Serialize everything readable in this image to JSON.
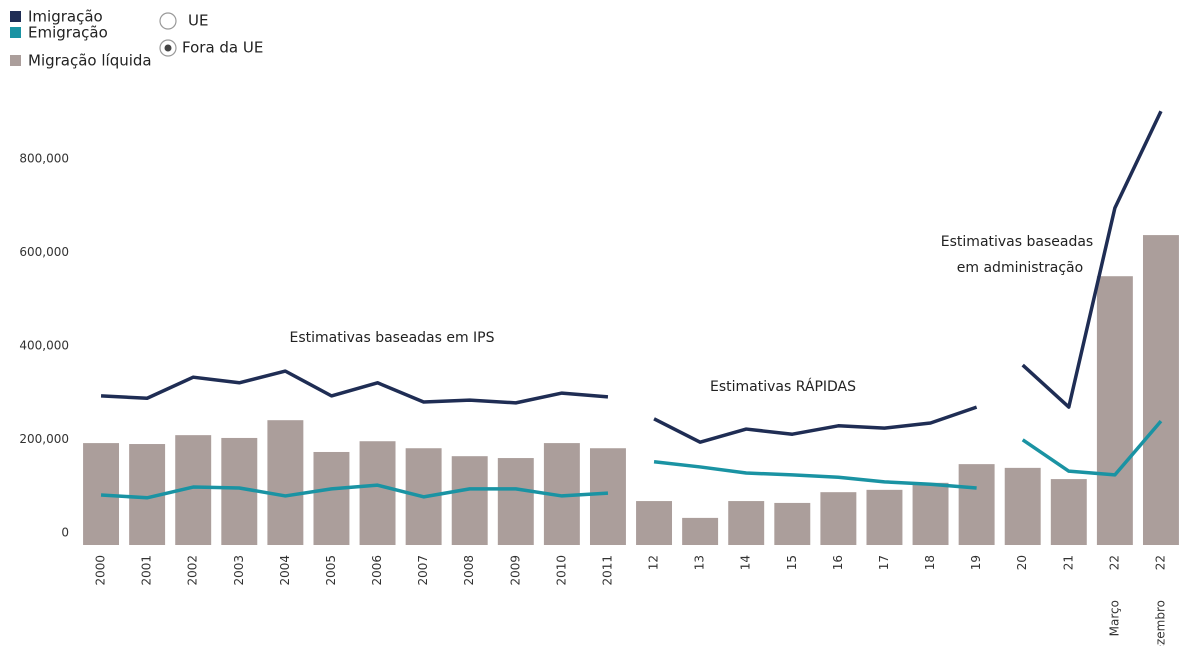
{
  "chart_data": {
    "type": "combo",
    "legend_options": [
      "UE",
      "Fora da UE"
    ],
    "selected_option": 1,
    "annotations": [
      "Estimativas baseadas em IPS",
      "Estimativas RÁPIDAS",
      "Estimativas baseadas",
      "em administração"
    ],
    "categories": [
      "2000",
      "2001",
      "2002",
      "2003",
      "2004",
      "2005",
      "2006",
      "2007",
      "2008",
      "2009",
      "2010",
      "2011",
      "12",
      "13",
      "14",
      "15",
      "16",
      "17",
      "18",
      "19",
      "20",
      "21",
      "22",
      "22"
    ],
    "category_sublabels": [
      null,
      null,
      null,
      null,
      null,
      null,
      null,
      null,
      null,
      null,
      null,
      null,
      null,
      null,
      null,
      null,
      null,
      null,
      null,
      null,
      null,
      null,
      "Março",
      "Dezembro"
    ],
    "line_breaks_before": [
      12,
      20
    ],
    "series": [
      {
        "name": "Imigração",
        "type": "line",
        "color": "#1f2d54",
        "values": [
          319000,
          314000,
          359000,
          347000,
          372000,
          319000,
          347000,
          306000,
          310000,
          304000,
          325000,
          317000,
          270000,
          220000,
          248000,
          237000,
          255000,
          250000,
          261000,
          295000,
          385000,
          295000,
          721000,
          928000
        ]
      },
      {
        "name": "Emigração",
        "type": "line",
        "color": "#1a93a3",
        "values": [
          107000,
          101000,
          124000,
          122000,
          105000,
          120000,
          128000,
          103000,
          120000,
          120000,
          105000,
          111000,
          178000,
          167000,
          154000,
          150000,
          145000,
          135000,
          130000,
          122000,
          225000,
          158000,
          150000,
          265000
        ]
      },
      {
        "name": "Migração líquida",
        "type": "bar",
        "color": "#ab9e9b",
        "values": [
          218000,
          216000,
          235000,
          229000,
          267000,
          199000,
          222000,
          207000,
          190000,
          186000,
          218000,
          207000,
          94000,
          58000,
          94000,
          90000,
          113000,
          118000,
          133000,
          173000,
          165000,
          141000,
          575000,
          663000
        ]
      }
    ],
    "ylim": [
      0,
      940000
    ],
    "yticks": [
      0,
      {
        "value": 200000,
        "label": "200,000"
      },
      {
        "value": 400000,
        "label": "400,000"
      },
      {
        "value": 600000,
        "label": "600,000"
      },
      {
        "value": 800000,
        "label": "800,000"
      }
    ],
    "grid": false
  }
}
